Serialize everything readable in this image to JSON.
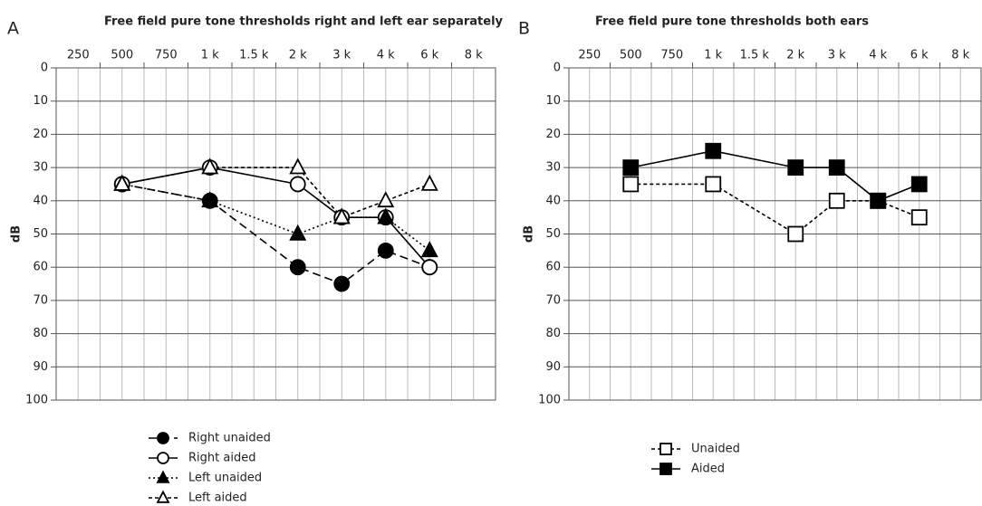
{
  "chart_data": [
    {
      "type": "line",
      "panel": "A",
      "title": "Free field pure tone thresholds right and left ear separately",
      "y_label": "dB",
      "x": [
        500,
        1000,
        2000,
        3000,
        4000,
        6000
      ],
      "xticks": [
        {
          "value": 250,
          "label": "250"
        },
        500,
        750,
        {
          "value": 1000,
          "label": "1 k"
        },
        {
          "value": 1500,
          "label": "1.5 k"
        },
        {
          "value": 2000,
          "label": "2 k"
        },
        {
          "value": 3000,
          "label": "3 k"
        },
        {
          "value": 4000,
          "label": "4 k"
        },
        {
          "value": 6000,
          "label": "6 k"
        },
        {
          "value": 8000,
          "label": "8 k"
        }
      ],
      "ylim": [
        0,
        100
      ],
      "yticks": [
        0,
        10,
        20,
        30,
        40,
        50,
        60,
        70,
        80,
        90,
        100
      ],
      "y_inverted": true,
      "grid": true,
      "legend": "bottom",
      "series": [
        {
          "name": "Right unaided",
          "color": "#000000",
          "marker": "circle",
          "filled": true,
          "line_style": "dashed",
          "values": [
            35,
            40,
            60,
            65,
            55,
            60
          ]
        },
        {
          "name": "Right aided",
          "color": "#000000",
          "marker": "circle",
          "filled": false,
          "line_style": "solid",
          "values": [
            35,
            30,
            35,
            45,
            45,
            60
          ]
        },
        {
          "name": "Left unaided",
          "color": "#000000",
          "marker": "triangle",
          "filled": true,
          "line_style": "dotted",
          "values": [
            35,
            40,
            50,
            45,
            45,
            55
          ]
        },
        {
          "name": "Left aided",
          "color": "#000000",
          "marker": "triangle",
          "filled": false,
          "line_style": "short-dashed",
          "values": [
            35,
            30,
            30,
            45,
            40,
            35
          ]
        }
      ]
    },
    {
      "type": "line",
      "panel": "B",
      "title": "Free field pure tone thresholds both ears",
      "y_label": "dB",
      "x": [
        500,
        1000,
        2000,
        3000,
        4000,
        6000
      ],
      "xticks": [
        {
          "value": 250,
          "label": "250"
        },
        500,
        750,
        {
          "value": 1000,
          "label": "1 k"
        },
        {
          "value": 1500,
          "label": "1.5 k"
        },
        {
          "value": 2000,
          "label": "2 k"
        },
        {
          "value": 3000,
          "label": "3 k"
        },
        {
          "value": 4000,
          "label": "4 k"
        },
        {
          "value": 6000,
          "label": "6 k"
        },
        {
          "value": 8000,
          "label": "8 k"
        }
      ],
      "ylim": [
        0,
        100
      ],
      "yticks": [
        0,
        10,
        20,
        30,
        40,
        50,
        60,
        70,
        80,
        90,
        100
      ],
      "y_inverted": true,
      "grid": true,
      "legend": "bottom",
      "series": [
        {
          "name": "Unaided",
          "color": "#000000",
          "marker": "square",
          "filled": false,
          "line_style": "short-dashed",
          "values": [
            35,
            35,
            50,
            40,
            40,
            45
          ]
        },
        {
          "name": "Aided",
          "color": "#000000",
          "marker": "square",
          "filled": true,
          "line_style": "solid",
          "values": [
            30,
            25,
            30,
            30,
            40,
            35
          ]
        }
      ]
    }
  ]
}
